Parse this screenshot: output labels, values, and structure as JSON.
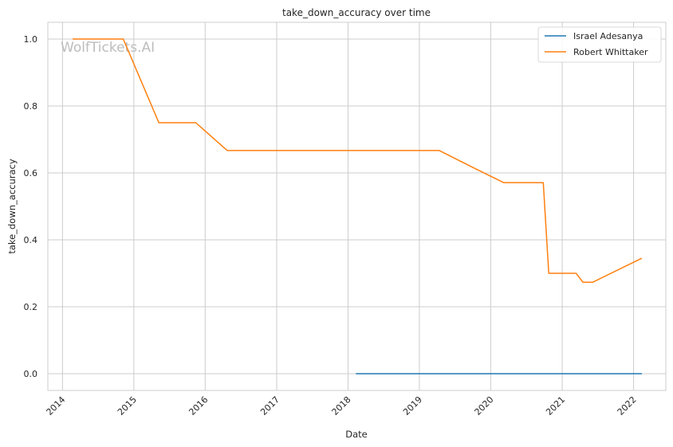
{
  "chart_data": {
    "type": "line",
    "title": "take_down_accuracy over time",
    "xlabel": "Date",
    "ylabel": "take_down_accuracy",
    "watermark": "WolfTickets.AI",
    "xlim": [
      "2013-10-18",
      "2022-06-15"
    ],
    "ylim": [
      -0.05,
      1.05
    ],
    "x_ticks": [
      "2014",
      "2015",
      "2016",
      "2017",
      "2018",
      "2019",
      "2020",
      "2021",
      "2022"
    ],
    "y_ticks": [
      "0.0",
      "0.2",
      "0.4",
      "0.6",
      "0.8",
      "1.0"
    ],
    "grid": true,
    "legend_position": "top-right",
    "series": [
      {
        "name": "Israel Adesanya",
        "color": "#1f77b4",
        "points": [
          {
            "x": "2018-02-10",
            "y": 0.0
          },
          {
            "x": "2022-02-12",
            "y": 0.0
          }
        ]
      },
      {
        "name": "Robert Whittaker",
        "color": "#ff7f0e",
        "points": [
          {
            "x": "2014-02-22",
            "y": 1.0
          },
          {
            "x": "2014-11-08",
            "y": 1.0
          },
          {
            "x": "2015-05-09",
            "y": 0.75
          },
          {
            "x": "2015-11-14",
            "y": 0.75
          },
          {
            "x": "2016-04-23",
            "y": 0.667
          },
          {
            "x": "2019-04-13",
            "y": 0.667
          },
          {
            "x": "2019-10-06",
            "y": 0.615
          },
          {
            "x": "2020-03-07",
            "y": 0.571
          },
          {
            "x": "2020-09-26",
            "y": 0.571
          },
          {
            "x": "2020-10-24",
            "y": 0.3
          },
          {
            "x": "2021-03-13",
            "y": 0.3
          },
          {
            "x": "2021-04-17",
            "y": 0.273
          },
          {
            "x": "2021-06-05",
            "y": 0.273
          },
          {
            "x": "2022-02-12",
            "y": 0.345
          }
        ]
      }
    ]
  }
}
